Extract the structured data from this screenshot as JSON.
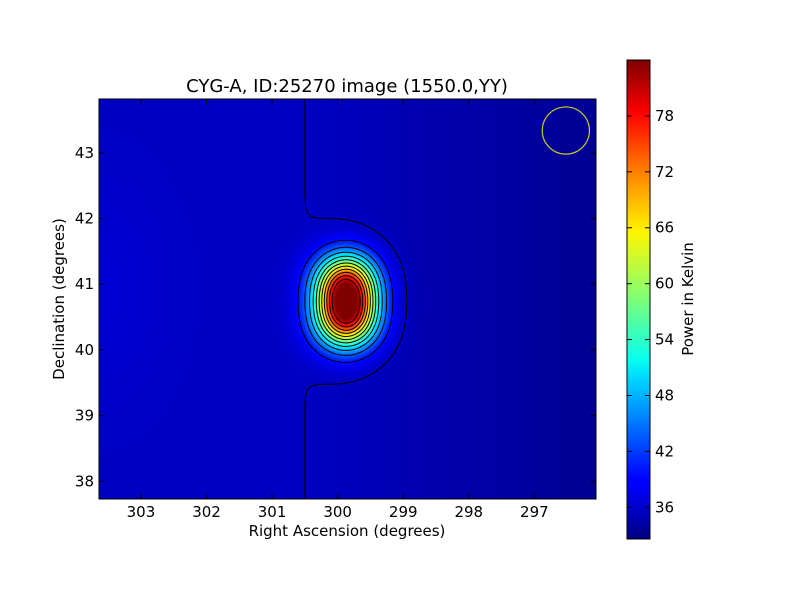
{
  "chart_data": {
    "type": "heatmap",
    "title": "CYG-A, ID:25270 image (1550.0,YY)",
    "xlabel": "Right Ascension (degrees)",
    "ylabel": "Declination (degrees)",
    "xlim": [
      303.64,
      296.06
    ],
    "ylim": [
      37.73,
      43.82
    ],
    "xticks": [
      303,
      302,
      301,
      300,
      299,
      298,
      297
    ],
    "yticks": [
      38,
      39,
      40,
      41,
      42,
      43
    ],
    "colorbar": {
      "label": "Power in Kelvin",
      "range": [
        32.6,
        84.0
      ],
      "ticks": [
        36,
        42,
        48,
        54,
        60,
        66,
        72,
        78
      ],
      "colormap": "jet"
    },
    "background_level": 36,
    "source": {
      "ra_center": 299.87,
      "dec_peaks": [
        41.0,
        40.48
      ],
      "peak_value": 83
    },
    "contour_levels": [
      36,
      40,
      44,
      48,
      52,
      56,
      60,
      64,
      68,
      72,
      76,
      80
    ],
    "beam": {
      "ra": 296.52,
      "dec": 43.34,
      "radius_deg": 0.36,
      "color": "#cccc22"
    },
    "colors": {
      "contour": "#000000",
      "frame": "#000000"
    }
  }
}
